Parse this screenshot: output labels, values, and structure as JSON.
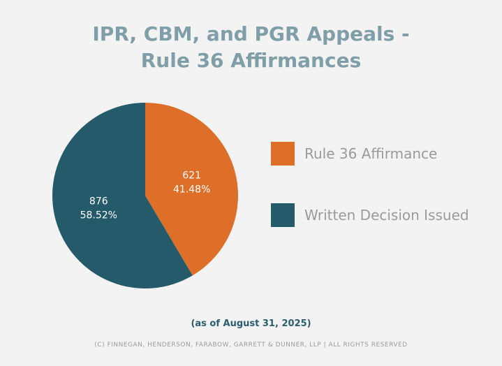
{
  "chart_data": {
    "type": "pie",
    "title_lines": [
      "IPR, CBM, and PGR Appeals -",
      "Rule 36 Affirmances"
    ],
    "slices": [
      {
        "name": "Rule 36 Affirmance",
        "value": 621,
        "percent_label": "41.48%",
        "color": "#dd6f28"
      },
      {
        "name": "Written Decision Issued",
        "value": 876,
        "percent_label": "58.52%",
        "color": "#255a6b"
      }
    ],
    "start_angle": "12 o'clock",
    "direction": "clockwise",
    "legend_placement": "right"
  },
  "footer": {
    "as_of": "(as of August 31, 2025)",
    "copyright": "(C) FINNEGAN, HENDERSON, FARABOW, GARRETT & DUNNER, LLP | ALL RIGHTS RESERVED"
  }
}
